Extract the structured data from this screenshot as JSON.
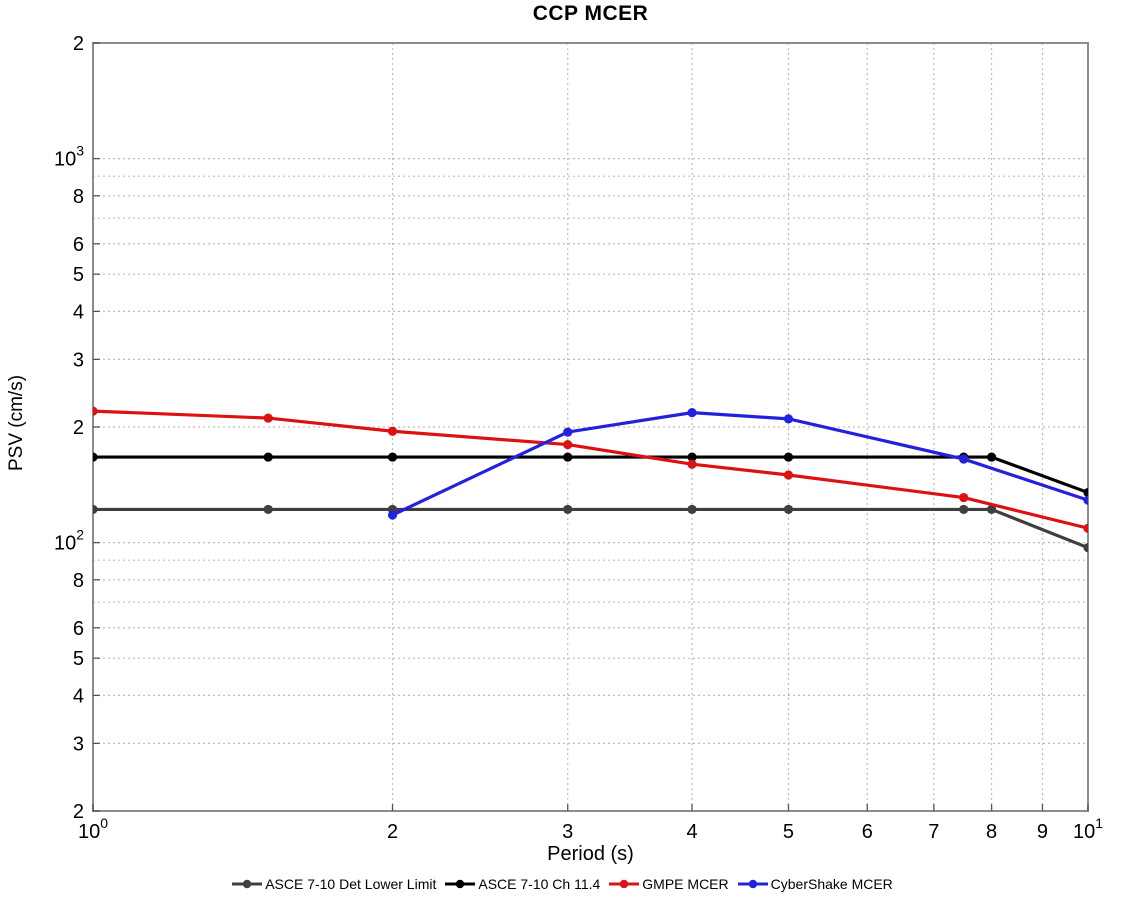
{
  "chart_data": {
    "type": "line",
    "title": "CCP MCER",
    "xlabel": "Period (s)",
    "ylabel": "PSV (cm/s)",
    "xscale": "log",
    "yscale": "log",
    "xlim": [
      1,
      10
    ],
    "ylim": [
      20,
      2000
    ],
    "grid": true,
    "legend_position": "bottom",
    "x_ticks": [
      {
        "value": 1,
        "label": "10",
        "exponent": "0"
      },
      {
        "value": 2,
        "label": "2"
      },
      {
        "value": 3,
        "label": "3"
      },
      {
        "value": 4,
        "label": "4"
      },
      {
        "value": 5,
        "label": "5"
      },
      {
        "value": 6,
        "label": "6"
      },
      {
        "value": 7,
        "label": "7"
      },
      {
        "value": 8,
        "label": "8"
      },
      {
        "value": 9,
        "label": "9"
      },
      {
        "value": 10,
        "label": "10",
        "exponent": "1"
      }
    ],
    "y_ticks": [
      {
        "value": 2000,
        "label": "2"
      },
      {
        "value": 1000,
        "label": "10",
        "exponent": "3"
      },
      {
        "value": 800,
        "label": "8"
      },
      {
        "value": 600,
        "label": "6"
      },
      {
        "value": 500,
        "label": "5"
      },
      {
        "value": 400,
        "label": "4"
      },
      {
        "value": 300,
        "label": "3"
      },
      {
        "value": 200,
        "label": "2"
      },
      {
        "value": 100,
        "label": "10",
        "exponent": "2"
      },
      {
        "value": 80,
        "label": "8"
      },
      {
        "value": 60,
        "label": "6"
      },
      {
        "value": 50,
        "label": "5"
      },
      {
        "value": 40,
        "label": "4"
      },
      {
        "value": 30,
        "label": "3"
      },
      {
        "value": 20,
        "label": "2"
      }
    ],
    "x_grid": [
      2,
      3,
      4,
      5,
      6,
      7,
      8,
      9
    ],
    "y_grid": [
      1000,
      900,
      800,
      700,
      600,
      500,
      400,
      300,
      200,
      100,
      90,
      80,
      70,
      60,
      50,
      40,
      30
    ],
    "series": [
      {
        "name": "ASCE 7-10 Det Lower Limit",
        "color": "#3f3f3f",
        "marker": "circle",
        "x": [
          1,
          1.5,
          2,
          3,
          4,
          5,
          7.5,
          8,
          10
        ],
        "y": [
          122,
          122,
          122,
          122,
          122,
          122,
          122,
          122,
          97
        ]
      },
      {
        "name": "ASCE 7-10 Ch 11.4",
        "color": "#000000",
        "marker": "circle",
        "x": [
          1,
          1.5,
          2,
          3,
          4,
          5,
          7.5,
          8,
          10
        ],
        "y": [
          167,
          167,
          167,
          167,
          167,
          167,
          167,
          167,
          135
        ]
      },
      {
        "name": "GMPE MCER",
        "color": "#dd1111",
        "marker": "circle",
        "x": [
          1,
          1.5,
          2,
          3,
          4,
          5,
          7.5,
          10
        ],
        "y": [
          220,
          211,
          195,
          180,
          160,
          150,
          131,
          109
        ]
      },
      {
        "name": "CyberShake MCER",
        "color": "#2222dd",
        "marker": "circle",
        "x": [
          2,
          3,
          4,
          5,
          7.5,
          10
        ],
        "y": [
          118,
          194,
          218,
          210,
          165,
          129
        ]
      }
    ],
    "style": {
      "grid_color": "#bcbcbc",
      "border_color": "#8c8c8c",
      "tick_color": "#555555",
      "line_width": 3.2,
      "marker_radius": 4.6
    }
  }
}
